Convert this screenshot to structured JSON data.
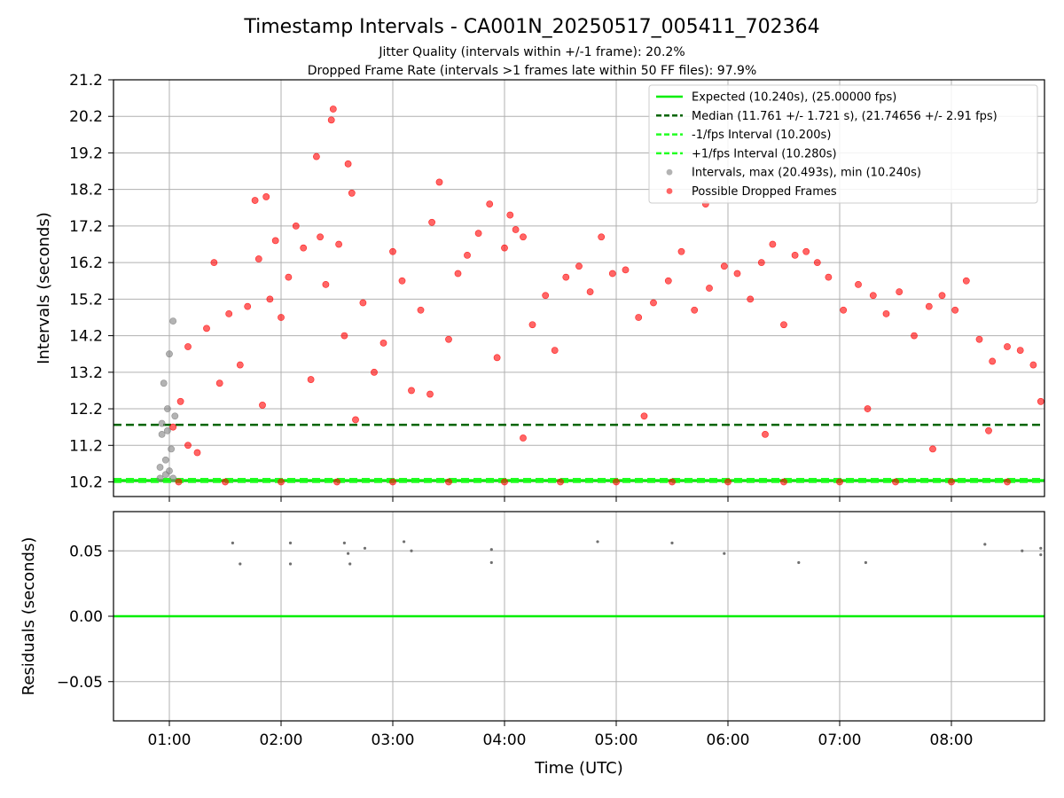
{
  "figure": {
    "title": "Timestamp Intervals - CA001N_20250517_005411_702364",
    "subtitle1": "Jitter Quality (intervals within +/-1 frame): 20.2%",
    "subtitle2": "Dropped Frame Rate (intervals >1 frames late within 50 FF files): 97.9%",
    "xlabel": "Time (UTC)",
    "colors": {
      "expected": "#00ee00",
      "median": "#006400",
      "fps_band": "#22ff22",
      "normal": "#808080",
      "dropped": "#ff0000",
      "residual": "#707070",
      "grid": "#b0b0b0"
    }
  },
  "chart_data": [
    {
      "type": "scatter",
      "name": "intervals",
      "ylabel": "Intervals (seconds)",
      "xlim": [
        "00:30",
        "08:50"
      ],
      "ylim": [
        9.8,
        21.2
      ],
      "x_ticks": [
        "01:00",
        "02:00",
        "03:00",
        "04:00",
        "05:00",
        "06:00",
        "07:00",
        "08:00"
      ],
      "y_ticks": [
        "10.2",
        "11.2",
        "12.2",
        "13.2",
        "14.2",
        "15.2",
        "16.2",
        "17.2",
        "18.2",
        "19.2",
        "20.2",
        "21.2"
      ],
      "grid": true,
      "legend_position": "top-right",
      "legend": [
        "Expected (10.240s), (25.00000 fps)",
        "Median (11.761 +/- 1.721 s), (21.74656 +/- 2.91 fps)",
        "-1/fps Interval (10.200s)",
        "+1/fps Interval (10.280s)",
        "Intervals, max (20.493s), min (10.240s)",
        "Possible Dropped Frames"
      ],
      "hlines": [
        {
          "name": "Expected",
          "y": 10.24,
          "style": "solid"
        },
        {
          "name": "Median",
          "y": 11.761,
          "style": "dashed"
        },
        {
          "name": "-1/fps Interval",
          "y": 10.2,
          "style": "dashed"
        },
        {
          "name": "+1/fps Interval",
          "y": 10.28,
          "style": "dashed"
        }
      ],
      "series": [
        {
          "name": "Intervals",
          "points": [
            [
              "00:55",
              10.3
            ],
            [
              "00:55",
              10.6
            ],
            [
              "00:56",
              11.5
            ],
            [
              "00:56",
              11.8
            ],
            [
              "00:57",
              12.9
            ],
            [
              "00:58",
              10.4
            ],
            [
              "00:58",
              10.8
            ],
            [
              "00:59",
              11.6
            ],
            [
              "00:59",
              12.2
            ],
            [
              "01:00",
              13.7
            ],
            [
              "01:00",
              10.5
            ],
            [
              "01:01",
              11.1
            ],
            [
              "01:02",
              14.6
            ],
            [
              "01:02",
              10.3
            ],
            [
              "01:03",
              12.0
            ]
          ]
        },
        {
          "name": "Possible Dropped Frames",
          "points": [
            [
              "01:02",
              11.7
            ],
            [
              "01:06",
              12.4
            ],
            [
              "01:10",
              13.9
            ],
            [
              "01:15",
              11.0
            ],
            [
              "01:20",
              14.4
            ],
            [
              "01:24",
              16.2
            ],
            [
              "01:27",
              12.9
            ],
            [
              "01:32",
              14.8
            ],
            [
              "01:38",
              13.4
            ],
            [
              "01:42",
              15.0
            ],
            [
              "01:46",
              17.9
            ],
            [
              "01:48",
              16.3
            ],
            [
              "01:52",
              18.0
            ],
            [
              "01:54",
              15.2
            ],
            [
              "01:57",
              16.8
            ],
            [
              "02:00",
              14.7
            ],
            [
              "02:04",
              15.8
            ],
            [
              "02:08",
              17.2
            ],
            [
              "02:12",
              16.6
            ],
            [
              "02:16",
              13.0
            ],
            [
              "02:19",
              19.1
            ],
            [
              "02:21",
              16.9
            ],
            [
              "02:24",
              15.6
            ],
            [
              "02:27",
              20.1
            ],
            [
              "02:28",
              20.4
            ],
            [
              "02:31",
              16.7
            ],
            [
              "02:34",
              14.2
            ],
            [
              "02:36",
              18.9
            ],
            [
              "02:38",
              18.1
            ],
            [
              "02:44",
              15.1
            ],
            [
              "02:50",
              13.2
            ],
            [
              "02:55",
              14.0
            ],
            [
              "03:00",
              16.5
            ],
            [
              "03:05",
              15.7
            ],
            [
              "03:10",
              12.7
            ],
            [
              "03:15",
              14.9
            ],
            [
              "03:21",
              17.3
            ],
            [
              "03:25",
              18.4
            ],
            [
              "03:30",
              14.1
            ],
            [
              "03:35",
              15.9
            ],
            [
              "03:40",
              16.4
            ],
            [
              "03:46",
              17.0
            ],
            [
              "03:52",
              17.8
            ],
            [
              "03:56",
              13.6
            ],
            [
              "04:00",
              16.6
            ],
            [
              "04:03",
              17.5
            ],
            [
              "04:06",
              17.1
            ],
            [
              "04:10",
              16.9
            ],
            [
              "04:15",
              14.5
            ],
            [
              "04:22",
              15.3
            ],
            [
              "04:27",
              13.8
            ],
            [
              "04:33",
              15.8
            ],
            [
              "04:40",
              16.1
            ],
            [
              "04:46",
              15.4
            ],
            [
              "04:52",
              16.9
            ],
            [
              "04:58",
              15.9
            ],
            [
              "05:05",
              16.0
            ],
            [
              "05:12",
              14.7
            ],
            [
              "05:20",
              15.1
            ],
            [
              "05:28",
              15.7
            ],
            [
              "05:35",
              16.5
            ],
            [
              "05:42",
              14.9
            ],
            [
              "05:48",
              17.8
            ],
            [
              "05:50",
              15.5
            ],
            [
              "05:58",
              16.1
            ],
            [
              "06:05",
              15.9
            ],
            [
              "06:12",
              15.2
            ],
            [
              "06:18",
              16.2
            ],
            [
              "06:24",
              16.7
            ],
            [
              "06:30",
              14.5
            ],
            [
              "06:36",
              16.4
            ],
            [
              "06:42",
              16.5
            ],
            [
              "06:48",
              16.2
            ],
            [
              "06:54",
              15.8
            ],
            [
              "07:02",
              14.9
            ],
            [
              "07:10",
              15.6
            ],
            [
              "07:18",
              15.3
            ],
            [
              "07:25",
              14.8
            ],
            [
              "07:32",
              15.4
            ],
            [
              "07:40",
              14.2
            ],
            [
              "07:48",
              15.0
            ],
            [
              "07:55",
              15.3
            ],
            [
              "08:02",
              14.9
            ],
            [
              "08:08",
              15.7
            ],
            [
              "08:15",
              14.1
            ],
            [
              "08:22",
              13.5
            ],
            [
              "08:30",
              13.9
            ],
            [
              "08:37",
              13.8
            ],
            [
              "08:44",
              13.4
            ],
            [
              "08:48",
              12.4
            ],
            [
              "01:05",
              10.2
            ],
            [
              "01:30",
              10.2
            ],
            [
              "02:00",
              10.2
            ],
            [
              "02:30",
              10.2
            ],
            [
              "03:00",
              10.2
            ],
            [
              "03:30",
              10.2
            ],
            [
              "04:00",
              10.2
            ],
            [
              "04:30",
              10.2
            ],
            [
              "05:00",
              10.2
            ],
            [
              "05:30",
              10.2
            ],
            [
              "06:00",
              10.2
            ],
            [
              "06:30",
              10.2
            ],
            [
              "07:00",
              10.2
            ],
            [
              "07:30",
              10.2
            ],
            [
              "08:00",
              10.2
            ],
            [
              "08:30",
              10.2
            ],
            [
              "01:10",
              11.2
            ],
            [
              "01:50",
              12.3
            ],
            [
              "02:40",
              11.9
            ],
            [
              "03:20",
              12.6
            ],
            [
              "04:10",
              11.4
            ],
            [
              "05:15",
              12.0
            ],
            [
              "06:20",
              11.5
            ],
            [
              "07:15",
              12.2
            ],
            [
              "07:50",
              11.1
            ],
            [
              "08:20",
              11.6
            ]
          ]
        }
      ]
    },
    {
      "type": "scatter",
      "name": "residuals",
      "ylabel": "Residuals (seconds)",
      "xlim": [
        "00:30",
        "08:50"
      ],
      "ylim": [
        -0.08,
        0.08
      ],
      "x_ticks": [
        "01:00",
        "02:00",
        "03:00",
        "04:00",
        "05:00",
        "06:00",
        "07:00",
        "08:00"
      ],
      "y_ticks": [
        "0.05",
        "0.00",
        "−0.05"
      ],
      "grid": true,
      "hlines": [
        {
          "name": "zero",
          "y": 0.0,
          "style": "solid"
        }
      ],
      "series": [
        {
          "name": "Residuals",
          "points": [
            [
              "01:34",
              0.056
            ],
            [
              "01:38",
              0.04
            ],
            [
              "02:05",
              0.056
            ],
            [
              "02:05",
              0.04
            ],
            [
              "02:34",
              0.056
            ],
            [
              "02:36",
              0.048
            ],
            [
              "02:37",
              0.04
            ],
            [
              "02:45",
              0.052
            ],
            [
              "03:06",
              0.057
            ],
            [
              "03:10",
              0.05
            ],
            [
              "03:53",
              0.051
            ],
            [
              "03:53",
              0.041
            ],
            [
              "04:50",
              0.057
            ],
            [
              "05:30",
              0.056
            ],
            [
              "05:58",
              0.048
            ],
            [
              "06:38",
              0.041
            ],
            [
              "07:14",
              0.041
            ],
            [
              "08:18",
              0.055
            ],
            [
              "08:38",
              0.05
            ],
            [
              "08:48",
              0.052
            ],
            [
              "08:48",
              0.047
            ]
          ]
        }
      ]
    }
  ]
}
